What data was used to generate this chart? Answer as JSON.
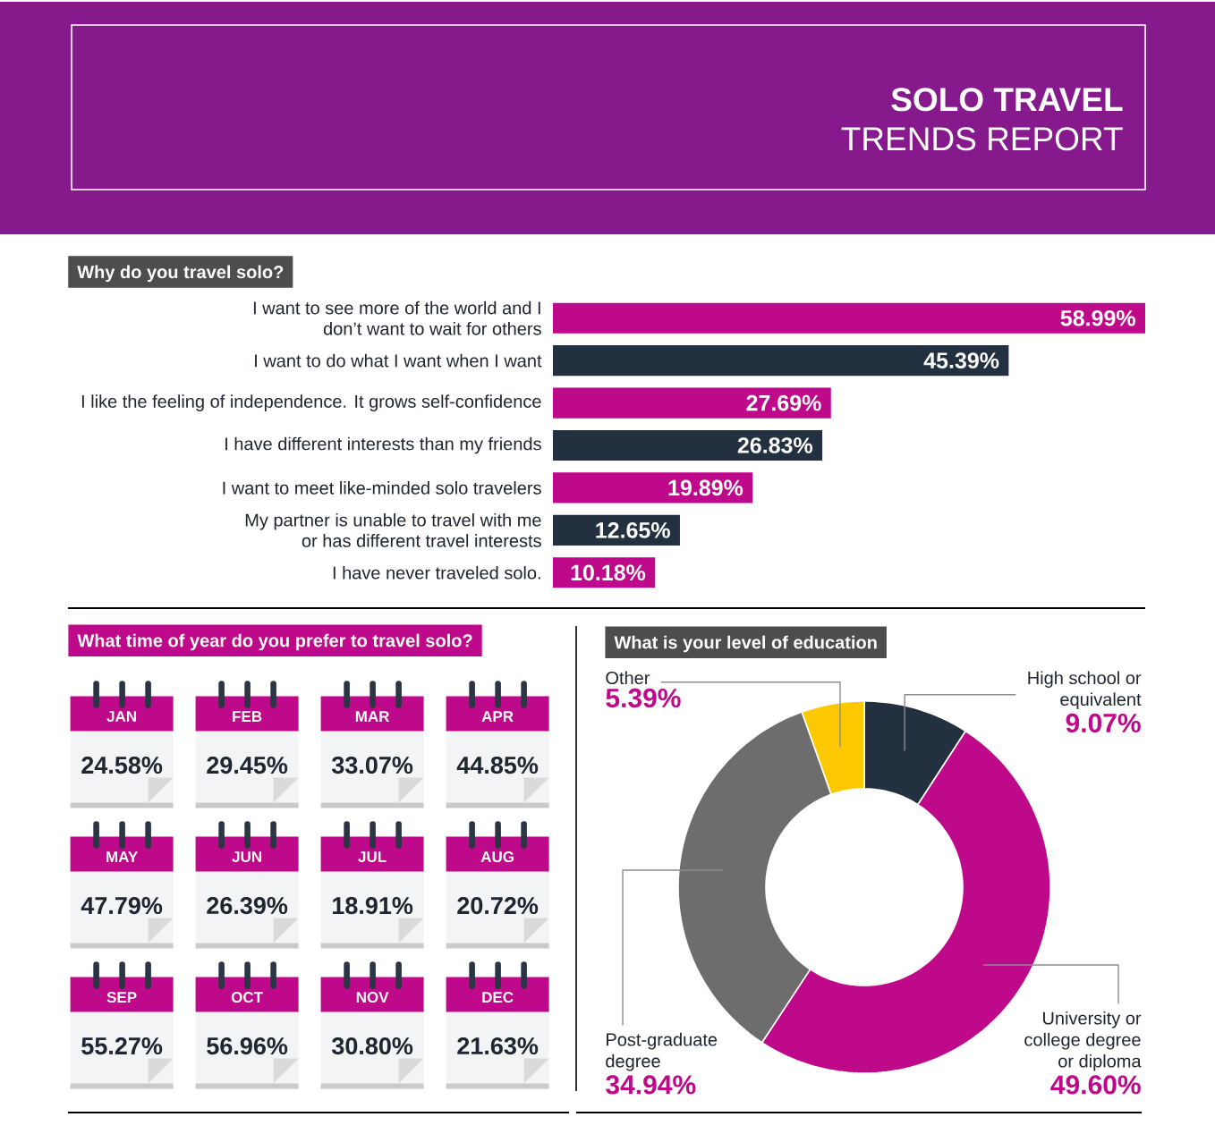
{
  "chart_data": [
    {
      "type": "other",
      "title": "SOLO TRAVEL",
      "subtitle": "TRENDS REPORT"
    },
    {
      "type": "bar",
      "orientation": "horizontal",
      "title": "Why do you travel solo?",
      "categories": [
        "I want to see more of the world and I don’t want to wait for others",
        "I want to do what I want when I want",
        "I like the feeling of independence. It grows self-confidence",
        "I have different interests than my friends",
        "I want to meet like-minded solo travelers",
        "My partner is unable to travel with me or has different travel interests",
        "I have never traveled solo."
      ],
      "values": [
        58.99,
        45.39,
        27.69,
        26.83,
        19.89,
        12.65,
        10.18
      ],
      "colors": [
        "#be0a8a",
        "#23303f",
        "#be0a8a",
        "#23303f",
        "#be0a8a",
        "#23303f",
        "#be0a8a"
      ],
      "value_labels": [
        "58.99%",
        "45.39%",
        "27.69%",
        "26.83%",
        "19.89%",
        "12.65%",
        "10.18%"
      ]
    },
    {
      "type": "other",
      "title": "What time of year do you prefer to travel solo?",
      "categories": [
        "JAN",
        "FEB",
        "MAR",
        "APR",
        "MAY",
        "JUN",
        "JUL",
        "AUG",
        "SEP",
        "OCT",
        "NOV",
        "DEC"
      ],
      "values": [
        24.58,
        29.45,
        33.07,
        44.85,
        47.79,
        26.39,
        18.91,
        20.72,
        55.27,
        56.96,
        30.8,
        21.63
      ],
      "value_labels": [
        "24.58%",
        "29.45%",
        "33.07%",
        "44.85%",
        "47.79%",
        "26.39%",
        "18.91%",
        "20.72%",
        "55.27%",
        "56.96%",
        "30.80%",
        "21.63%"
      ]
    },
    {
      "type": "donut",
      "title": "What is your level of education",
      "categories": [
        "High school or equivalent",
        "University or college degree or diploma",
        "Post-graduate degree",
        "Other"
      ],
      "values": [
        9.07,
        49.6,
        34.94,
        5.39
      ],
      "colors": [
        "#23303f",
        "#be0a8a",
        "#6d6d6d",
        "#fcc800"
      ],
      "value_labels": [
        "9.07%",
        "49.60%",
        "34.94%",
        "5.39%"
      ]
    }
  ]
}
